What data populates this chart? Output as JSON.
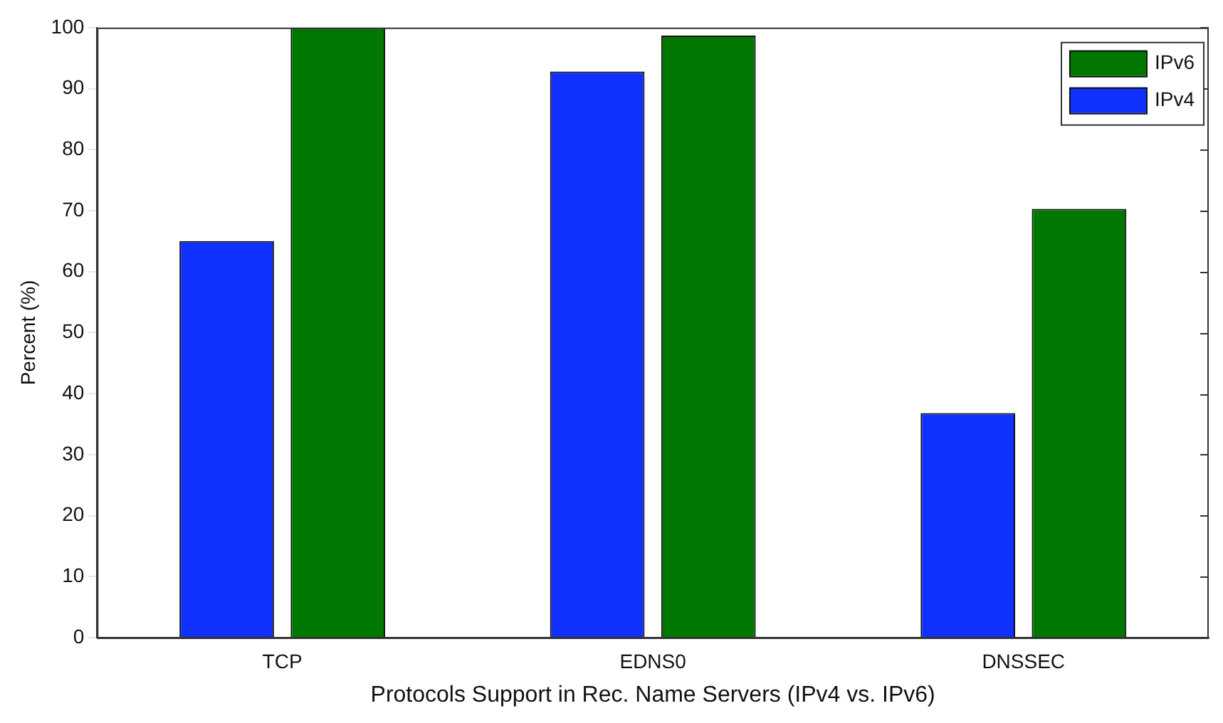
{
  "chart_data": {
    "type": "bar",
    "xlabel": "Protocols Support in Rec. Name Servers (IPv4 vs. IPv6)",
    "ylabel": "Percent (%)",
    "categories": [
      "TCP",
      "EDNS0",
      "DNSSEC"
    ],
    "series": [
      {
        "name": "IPv4",
        "color": "#1030ff",
        "values": [
          65,
          92.8,
          36.8
        ]
      },
      {
        "name": "IPv6",
        "color": "#007800",
        "values": [
          100,
          98.7,
          70.3
        ]
      }
    ],
    "ylim": [
      0,
      100
    ],
    "yticks": [
      0,
      10,
      20,
      30,
      40,
      50,
      60,
      70,
      80,
      90,
      100
    ],
    "grid": false,
    "legend": "top right"
  }
}
